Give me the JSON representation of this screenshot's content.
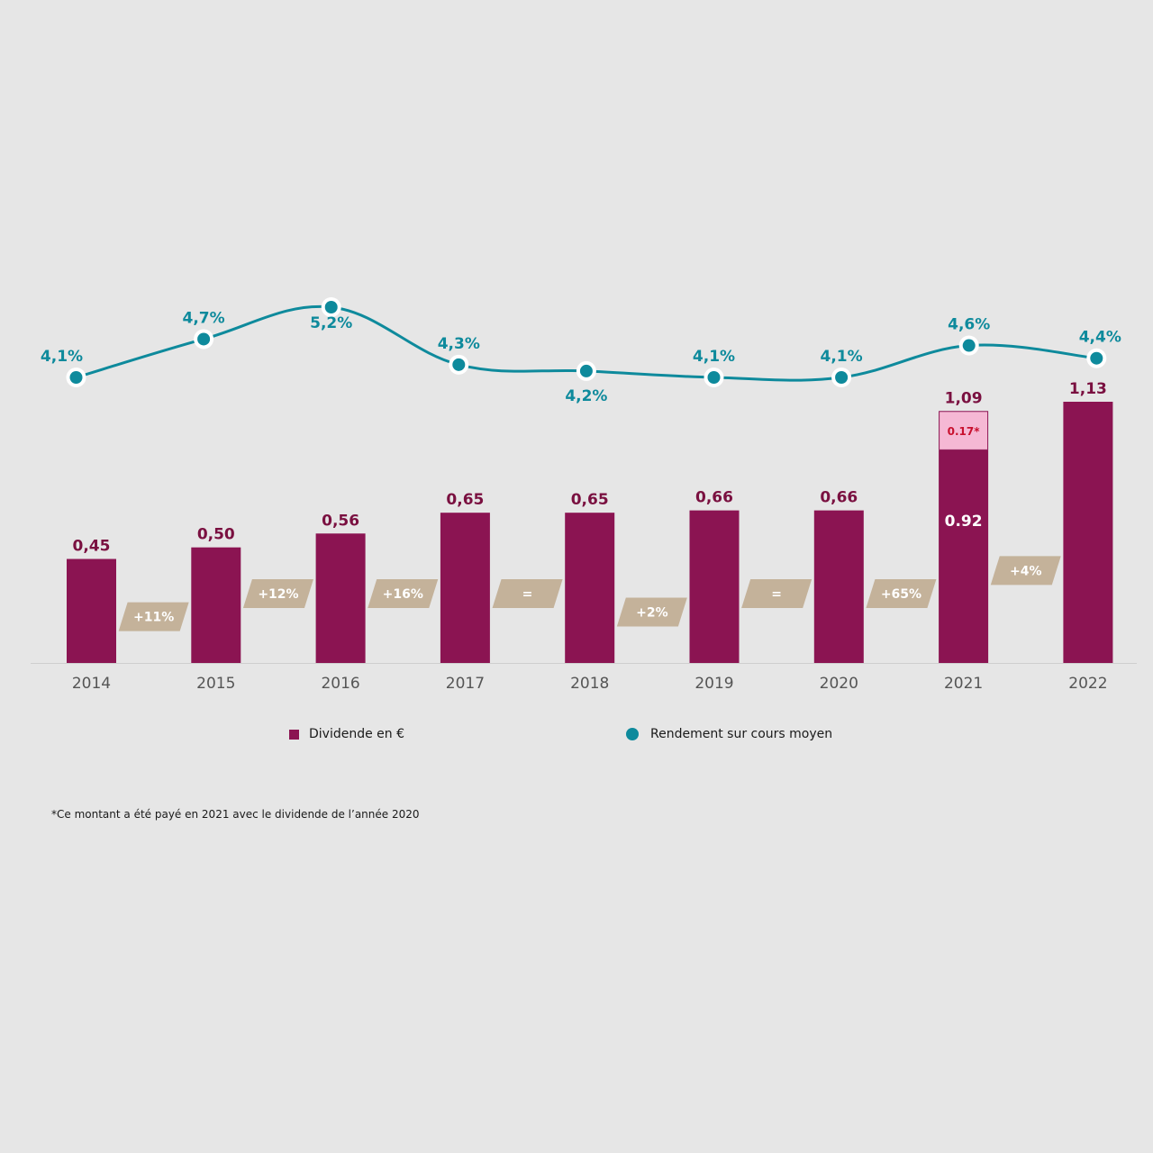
{
  "chart_data": {
    "type": "bar",
    "title": "",
    "xlabel": "",
    "ylabel": "",
    "categories": [
      "2014",
      "2015",
      "2016",
      "2017",
      "2018",
      "2019",
      "2020",
      "2021",
      "2022"
    ],
    "series": [
      {
        "name": "Dividende en €",
        "type": "bar",
        "values": [
          0.45,
          0.5,
          0.56,
          0.65,
          0.65,
          0.66,
          0.66,
          1.09,
          1.13
        ],
        "labels": [
          "0,45",
          "0,50",
          "0,56",
          "0,65",
          "0,65",
          "0,66",
          "0,66",
          "1,09",
          "1,13"
        ],
        "color": "#8b1452"
      },
      {
        "name": "Rendement sur cours moyen",
        "type": "line",
        "values": [
          4.1,
          4.7,
          5.2,
          4.3,
          4.2,
          4.1,
          4.1,
          4.6,
          4.4
        ],
        "labels": [
          "4,1%",
          "4,7%",
          "5,2%",
          "4,3%",
          "4,2%",
          "4,1%",
          "4,1%",
          "4,6%",
          "4,4%"
        ],
        "color": "#0e8a9c"
      }
    ],
    "stack_2021": {
      "category": "2021",
      "base_value": 0.92,
      "base_label": "0.92",
      "extra_value": 0.17,
      "extra_label": "0.17*",
      "extra_color": "#f5b8d4",
      "extra_text_color": "#c8102e"
    },
    "growth_labels": [
      "+11%",
      "+12%",
      "+16%",
      "=",
      "+2%",
      "=",
      "+65%",
      "+4%"
    ],
    "growth_values": [
      0.2,
      0.3,
      0.3,
      0.3,
      0.22,
      0.3,
      0.3,
      0.4
    ],
    "growth_color": "#c4b29a",
    "ylim_bar": [
      0,
      1.13
    ],
    "ylim_line": [
      4.1,
      5.2
    ],
    "grid": false,
    "legend": {
      "position": "bottom",
      "items": [
        {
          "label": "Dividende en €",
          "marker": "square",
          "color": "#8b1452"
        },
        {
          "label": "Rendement sur cours moyen",
          "marker": "circle",
          "color": "#0e8a9c"
        }
      ]
    }
  },
  "footnote": "*Ce montant a été payé en 2021 avec le dividende de l’année 2020"
}
